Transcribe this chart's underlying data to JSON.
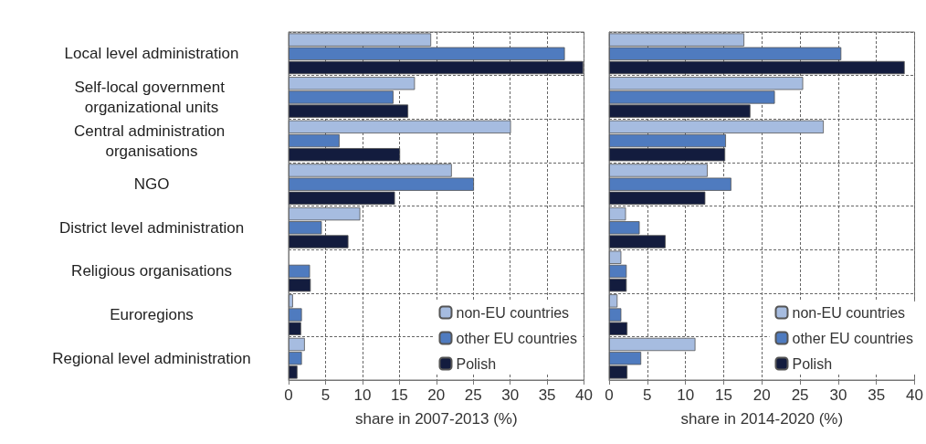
{
  "chart_data": [
    {
      "type": "bar",
      "orientation": "horizontal",
      "xlabel": "share in 2007-2013 (%)",
      "categories": [
        "Local level administration",
        "Self-local government organizational units",
        "Central administration organisations",
        "NGO",
        "District level administration",
        "Religious organisations",
        "Euroregions",
        "Regional level administration"
      ],
      "series": [
        {
          "name": "non-EU countries",
          "color": "#a6bce0",
          "values": [
            19.3,
            17.1,
            30.1,
            22.1,
            9.7,
            0,
            0.6,
            2.2
          ]
        },
        {
          "name": "other EU countries",
          "color": "#4f7bbf",
          "values": [
            37.4,
            14.2,
            6.9,
            25.1,
            4.5,
            2.9,
            1.8,
            1.8
          ]
        },
        {
          "name": "Polish",
          "color": "#131c3e",
          "values": [
            39.9,
            16.2,
            15.1,
            14.4,
            8.1,
            3.0,
            1.7,
            1.2
          ]
        }
      ],
      "xlim": [
        0,
        40
      ],
      "xticks": [
        0,
        5,
        10,
        15,
        20,
        25,
        30,
        35,
        40
      ],
      "grid": true,
      "legend": "bottom right"
    },
    {
      "type": "bar",
      "orientation": "horizontal",
      "xlabel": "share in 2014-2020 (%)",
      "categories": [
        "Local level administration",
        "Self-local government organizational units",
        "Central administration organisations",
        "NGO",
        "District level administration",
        "Religious organisations",
        "Euroregions",
        "Regional level administration"
      ],
      "series": [
        {
          "name": "non-EU countries",
          "color": "#a6bce0",
          "values": [
            17.7,
            25.4,
            28.1,
            12.9,
            2.2,
            1.6,
            1.1,
            11.3
          ]
        },
        {
          "name": "other EU countries",
          "color": "#4f7bbf",
          "values": [
            30.4,
            21.7,
            15.3,
            16.0,
            4.0,
            2.3,
            1.6,
            4.2
          ]
        },
        {
          "name": "Polish",
          "color": "#131c3e",
          "values": [
            38.7,
            18.5,
            15.2,
            12.6,
            7.4,
            2.3,
            2.4,
            2.4
          ]
        }
      ],
      "xlim": [
        0,
        40
      ],
      "xticks": [
        0,
        5,
        10,
        15,
        20,
        25,
        30,
        35,
        40
      ],
      "grid": true,
      "legend": "bottom right",
      "tick_labels": "x"
    }
  ]
}
